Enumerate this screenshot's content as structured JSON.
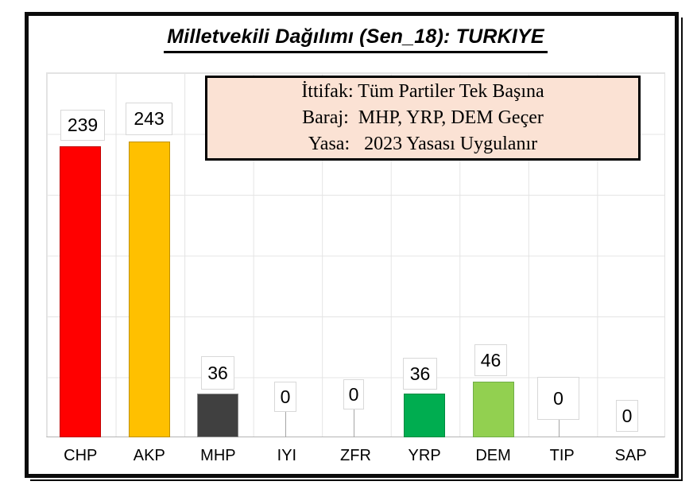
{
  "title": "Milletvekili Dağılımı (Sen_18): TURKIYE",
  "annotation": {
    "lines": [
      "İttifak: Tüm Partiler Tek Başına",
      "Baraj:  MHP, YRP, DEM Geçer",
      "Yasa:   2023 Yasası Uygulanır"
    ],
    "background": "#FBE2D4",
    "border_color": "#000000"
  },
  "frame": {
    "border_color": "#0B0B0B",
    "background": "#FFFFFF"
  },
  "chart_data": {
    "type": "bar",
    "title": "Milletvekili Dağılımı (Sen_18): TURKIYE",
    "categories": [
      "CHP",
      "AKP",
      "MHP",
      "IYI",
      "ZFR",
      "YRP",
      "DEM",
      "TIP",
      "SAP"
    ],
    "values": [
      239,
      243,
      36,
      0,
      0,
      36,
      46,
      0,
      0
    ],
    "data_labels": [
      "239",
      "243",
      "36",
      "0",
      "0",
      "36",
      "46",
      "0",
      "0"
    ],
    "bar_colors": [
      "#FF0000",
      "#FFC000",
      "#404040",
      null,
      null,
      "#00AD50",
      "#92D050",
      null,
      null
    ],
    "bar_border_colors": [
      "#C00000",
      "#BF9000",
      "#898989",
      null,
      null,
      "#008A40",
      "#70AD47",
      null,
      null
    ],
    "xlabel": "",
    "ylabel": "",
    "ylim": [
      0,
      300
    ],
    "grid": true,
    "gridline_step": 50,
    "gridline_color": "#E4E4E4",
    "axis_line_color": "#B5B5B5",
    "legend": "none",
    "data_label_box": {
      "fill": "#FFFFFF",
      "border": "#D8D8D8"
    }
  }
}
